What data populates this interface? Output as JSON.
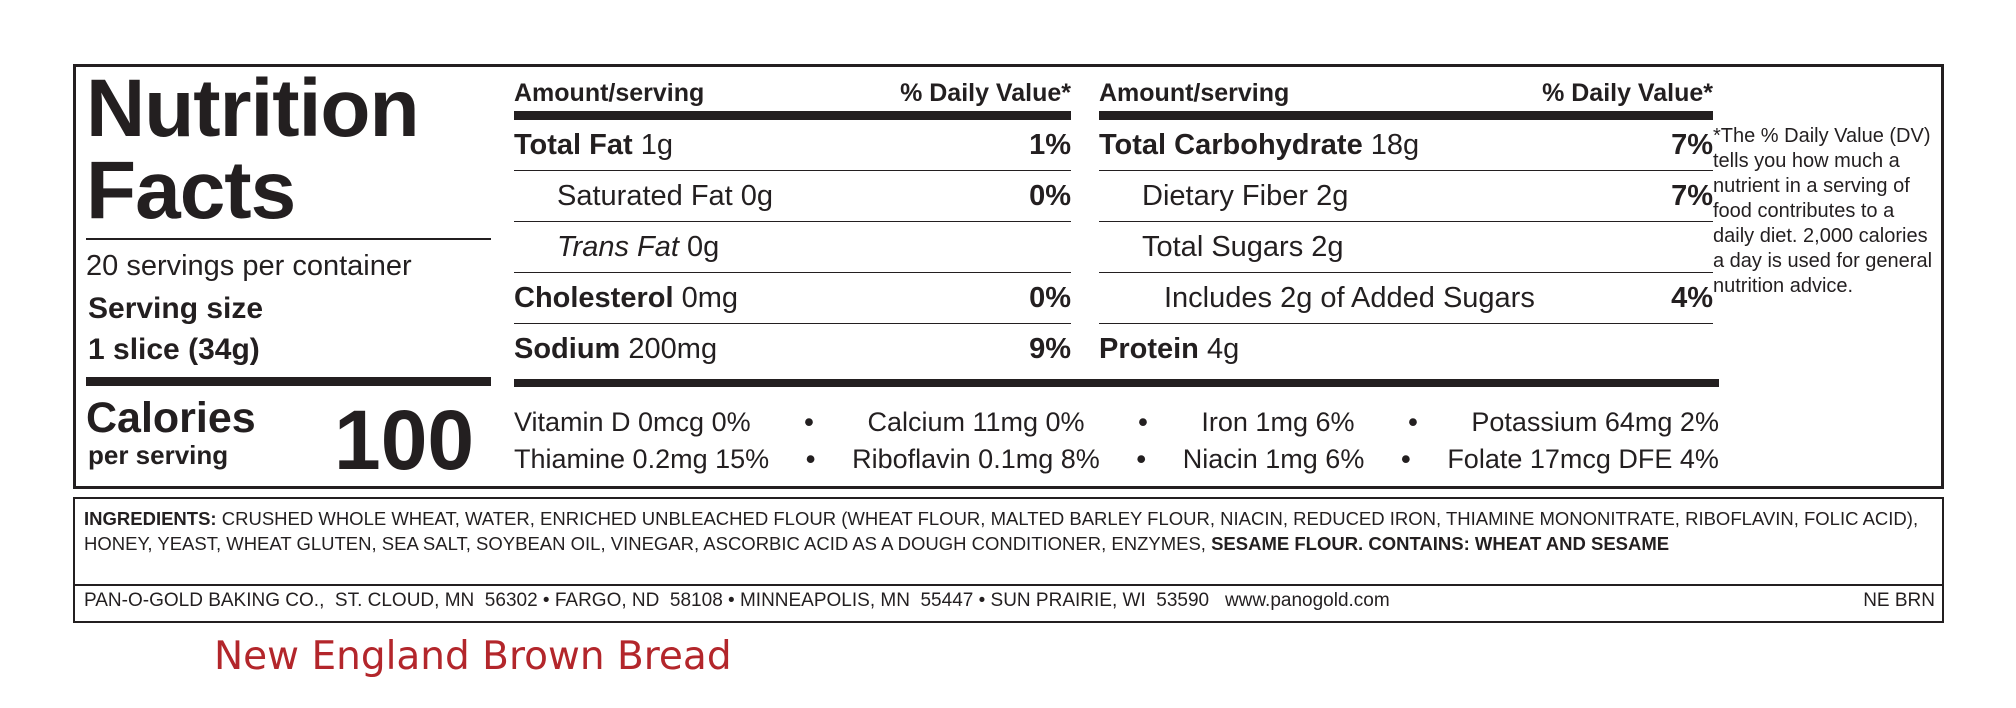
{
  "label": {
    "title": "Nutrition Facts",
    "servings": "20 servings per container",
    "serving_size_label": "Serving size",
    "serving_size": "1 slice (34g)",
    "calories_label": "Calories",
    "calories_sub": "per serving",
    "calories": 100,
    "left_table": {
      "header": {
        "amount": "Amount/serving",
        "dv": "% Daily Value*"
      },
      "rows": [
        {
          "name": "Total Fat",
          "amount": "1g",
          "dv": "1%"
        },
        {
          "name": "Saturated Fat",
          "amount": "0g",
          "dv": "0%"
        },
        {
          "name": "Trans Fat",
          "amount": "0g"
        },
        {
          "name": "Cholesterol",
          "amount": "0mg",
          "dv": "0%"
        },
        {
          "name": "Sodium",
          "amount": "200mg",
          "dv": "9%"
        }
      ]
    },
    "right_table": {
      "header": {
        "amount": "Amount/serving",
        "dv": "% Daily Value*"
      },
      "rows": [
        {
          "name": "Total Carbohydrate",
          "amount": "18g",
          "dv": "7%"
        },
        {
          "name": "Dietary Fiber",
          "amount": "2g",
          "dv": "7%"
        },
        {
          "name": "Total Sugars",
          "amount": "2g"
        },
        {
          "name": "Includes 2g of Added Sugars",
          "dv": "4%"
        },
        {
          "name": "Protein",
          "amount": "4g"
        }
      ]
    },
    "vitamins": [
      [
        "Vitamin D 0mcg 0%",
        "Calcium 11mg 0%",
        "Iron 1mg 6%",
        "Potassium 64mg 2%"
      ],
      [
        "Thiamine 0.2mg 15%",
        "Riboflavin 0.1mg 8%",
        "Niacin 1mg 6%",
        "Folate 17mcg DFE 4%"
      ]
    ],
    "footnote": "*The % Daily Value (DV) tells you how much a nutrient in a serving of food contributes to a daily diet. 2,000 calories a day is used for general nutrition advice."
  },
  "ingredients": {
    "label": "INGREDIENTS:",
    "text": "CRUSHED WHOLE WHEAT, WATER, ENRICHED UNBLEACHED FLOUR (WHEAT FLOUR, MALTED BARLEY FLOUR, NIACIN, REDUCED IRON, THIAMINE MONONITRATE, RIBOFLAVIN, FOLIC ACID), HONEY, YEAST, WHEAT GLUTEN, SEA SALT, SOYBEAN OIL, VINEGAR, ASCORBIC ACID AS A DOUGH CONDITIONER,  ENZYMES,",
    "allergens": "SESAME FLOUR. CONTAINS: WHEAT AND SESAME"
  },
  "footer": {
    "company": "PAN-O-GOLD BAKING CO.,  ST. CLOUD, MN  56302 • FARGO, ND  58108 • MINNEAPOLIS, MN  55447 • SUN PRAIRIE, WI  53590   www.panogold.com",
    "code": "NE BRN"
  },
  "caption": "New England Brown Bread"
}
